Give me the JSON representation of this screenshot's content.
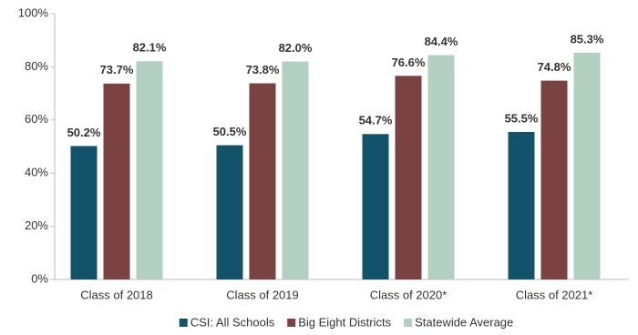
{
  "chart_data": {
    "type": "bar",
    "categories": [
      "Class of 2018",
      "Class of 2019",
      "Class of 2020*",
      "Class of 2021*"
    ],
    "series": [
      {
        "name": "CSI: All Schools",
        "color": "#12536b",
        "values": [
          50.2,
          50.5,
          54.7,
          55.5
        ],
        "value_labels": [
          "50.2%",
          "50.5%",
          "54.7%",
          "55.5%"
        ]
      },
      {
        "name": "Big Eight Districts",
        "color": "#7b4242",
        "values": [
          73.7,
          73.8,
          76.6,
          74.8
        ],
        "value_labels": [
          "73.7%",
          "73.8%",
          "76.6%",
          "74.8%"
        ]
      },
      {
        "name": "Statewide Average",
        "color": "#b3cfc2",
        "values": [
          82.1,
          82.0,
          84.4,
          85.3
        ],
        "value_labels": [
          "82.1%",
          "82.0%",
          "84.4%",
          "85.3%"
        ]
      }
    ],
    "ylim": [
      0,
      100
    ],
    "yticks": [
      {
        "value": 0,
        "label": "0%"
      },
      {
        "value": 20,
        "label": "20%"
      },
      {
        "value": 40,
        "label": "40%"
      },
      {
        "value": 60,
        "label": "60%"
      },
      {
        "value": 80,
        "label": "80%"
      },
      {
        "value": 100,
        "label": "100%"
      }
    ],
    "grid": false,
    "legend": "bottom"
  }
}
